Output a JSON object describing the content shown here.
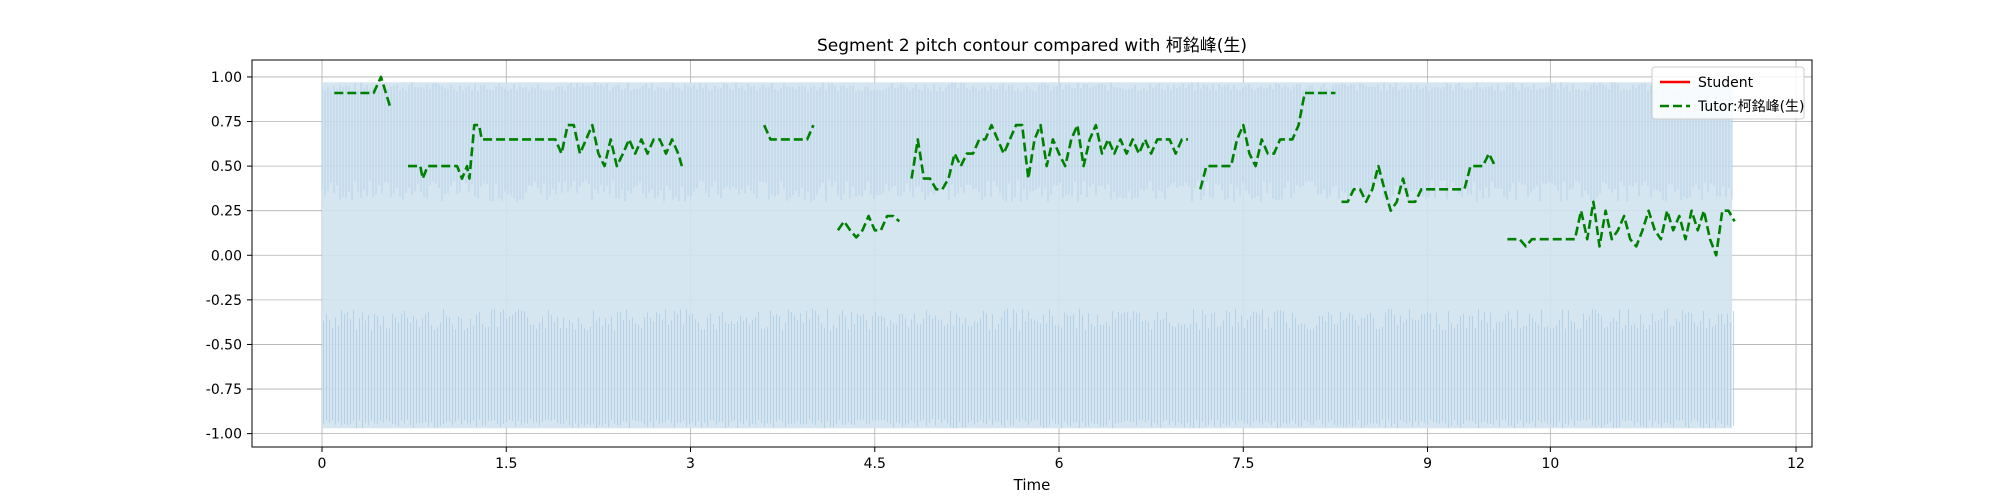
{
  "chart_data": {
    "type": "line",
    "title": "Segment 2 pitch contour compared with 柯銘峰(生)",
    "xlabel": "Time",
    "ylabel": "",
    "xlim": [
      -0.57,
      12.13
    ],
    "ylim": [
      -1.075,
      1.095
    ],
    "grid": true,
    "legend_position": "top-right",
    "x_ticks": [
      0,
      1.5,
      3,
      4.5,
      6,
      7.5,
      9,
      10,
      12
    ],
    "x_tick_labels": [
      "0",
      "1.5",
      "3",
      "4.5",
      "6",
      "7.5",
      "9",
      "10",
      "12"
    ],
    "y_ticks": [
      1.0,
      0.75,
      0.5,
      0.25,
      0.0,
      -0.25,
      -0.5,
      -0.75,
      -1.0
    ],
    "y_tick_labels": [
      "1.00",
      "0.75",
      "0.50",
      "0.25",
      "0.00",
      "-0.25",
      "-0.50",
      "-0.75",
      "-1.00"
    ],
    "colors": {
      "waveform": "#a9c9e3",
      "waveform_band": "#d2e3f0",
      "student": "#ff0000",
      "tutor": "#008000",
      "grid": "#b0b0b0"
    },
    "waveform": {
      "name": "",
      "x_range": [
        0,
        11.48
      ],
      "envelope_upper": 0.97,
      "envelope_lower": -0.97
    },
    "series": [
      {
        "name": "Student",
        "style": "solid",
        "color": "#ff0000",
        "x": [],
        "y": []
      },
      {
        "name": "Tutor:柯銘峰(生)",
        "style": "dashed",
        "color": "#008000",
        "segments": [
          {
            "x": [
              0.1,
              0.2,
              0.3,
              0.42,
              0.48,
              0.52,
              0.56
            ],
            "y": [
              0.91,
              0.91,
              0.91,
              0.91,
              1.0,
              0.91,
              0.82
            ]
          },
          {
            "x": [
              0.7,
              0.8,
              0.82,
              0.86,
              0.9,
              1.0,
              1.1,
              1.14,
              1.18,
              1.2,
              1.24,
              1.28,
              1.3,
              1.35,
              1.4,
              1.5,
              1.6,
              1.7,
              1.8,
              1.9,
              1.95,
              2.0,
              2.05,
              2.1,
              2.15,
              2.2,
              2.25,
              2.3,
              2.35,
              2.4,
              2.45,
              2.5,
              2.55,
              2.6,
              2.65,
              2.7,
              2.75,
              2.8,
              2.85,
              2.9,
              2.93
            ],
            "y": [
              0.5,
              0.5,
              0.43,
              0.5,
              0.5,
              0.5,
              0.5,
              0.43,
              0.5,
              0.43,
              0.73,
              0.73,
              0.65,
              0.65,
              0.65,
              0.65,
              0.65,
              0.65,
              0.65,
              0.65,
              0.57,
              0.73,
              0.73,
              0.57,
              0.65,
              0.73,
              0.57,
              0.5,
              0.65,
              0.5,
              0.57,
              0.65,
              0.57,
              0.65,
              0.57,
              0.65,
              0.65,
              0.57,
              0.65,
              0.57,
              0.5
            ]
          },
          {
            "x": [
              3.6,
              3.65,
              3.7,
              3.8,
              3.9,
              3.95,
              4.0
            ],
            "y": [
              0.73,
              0.65,
              0.65,
              0.65,
              0.65,
              0.65,
              0.73
            ]
          },
          {
            "x": [
              4.2,
              4.25,
              4.3,
              4.35,
              4.4,
              4.45,
              4.5,
              4.55,
              4.6,
              4.65,
              4.7
            ],
            "y": [
              0.14,
              0.19,
              0.14,
              0.1,
              0.14,
              0.22,
              0.14,
              0.14,
              0.22,
              0.22,
              0.19
            ]
          },
          {
            "x": [
              4.8,
              4.85,
              4.9,
              4.95,
              5.0,
              5.05,
              5.1,
              5.15,
              5.2,
              5.25,
              5.3,
              5.35,
              5.4,
              5.45,
              5.5,
              5.55,
              5.6,
              5.65,
              5.7,
              5.75,
              5.8,
              5.85,
              5.9,
              5.95,
              6.0,
              6.05,
              6.1,
              6.15,
              6.2,
              6.25,
              6.3,
              6.35,
              6.4,
              6.45,
              6.5,
              6.55,
              6.6,
              6.65,
              6.7,
              6.75,
              6.8,
              6.85,
              6.9,
              6.95,
              7.0,
              7.05
            ],
            "y": [
              0.43,
              0.65,
              0.43,
              0.43,
              0.37,
              0.37,
              0.43,
              0.57,
              0.5,
              0.57,
              0.57,
              0.65,
              0.65,
              0.73,
              0.65,
              0.57,
              0.65,
              0.73,
              0.73,
              0.43,
              0.65,
              0.73,
              0.5,
              0.65,
              0.57,
              0.5,
              0.65,
              0.73,
              0.5,
              0.65,
              0.73,
              0.57,
              0.65,
              0.57,
              0.65,
              0.57,
              0.65,
              0.57,
              0.65,
              0.57,
              0.65,
              0.65,
              0.65,
              0.57,
              0.65,
              0.65
            ]
          },
          {
            "x": [
              7.15,
              7.2,
              7.25,
              7.3,
              7.35,
              7.4,
              7.45,
              7.5,
              7.55,
              7.6,
              7.65,
              7.7,
              7.75,
              7.8,
              7.85,
              7.9,
              7.95,
              8.0,
              8.05,
              8.1,
              8.15,
              8.2,
              8.25
            ],
            "y": [
              0.37,
              0.5,
              0.5,
              0.5,
              0.5,
              0.5,
              0.65,
              0.73,
              0.57,
              0.5,
              0.65,
              0.57,
              0.57,
              0.65,
              0.65,
              0.65,
              0.73,
              0.91,
              0.91,
              0.91,
              0.91,
              0.91,
              0.91
            ]
          },
          {
            "x": [
              8.3,
              8.35,
              8.4,
              8.45,
              8.5,
              8.55,
              8.6,
              8.65,
              8.7,
              8.75,
              8.8,
              8.85,
              8.9,
              8.95,
              9.0,
              9.05,
              9.1,
              9.15,
              9.2,
              9.25,
              9.3,
              9.35,
              9.4,
              9.45,
              9.5,
              9.55
            ],
            "y": [
              0.3,
              0.3,
              0.37,
              0.37,
              0.3,
              0.37,
              0.5,
              0.37,
              0.25,
              0.3,
              0.43,
              0.3,
              0.3,
              0.37,
              0.37,
              0.37,
              0.37,
              0.37,
              0.37,
              0.37,
              0.37,
              0.5,
              0.5,
              0.5,
              0.57,
              0.5
            ]
          },
          {
            "x": [
              9.65,
              9.7,
              9.75,
              9.8,
              9.85,
              9.9,
              9.95,
              10.0,
              10.05,
              10.1,
              10.15,
              10.2,
              10.25,
              10.3,
              10.35,
              10.4,
              10.45,
              10.5,
              10.55,
              10.6,
              10.65,
              10.7,
              10.75,
              10.8,
              10.85,
              10.9,
              10.95,
              11.0,
              11.05,
              11.1,
              11.15,
              11.2,
              11.25,
              11.3,
              11.35,
              11.4,
              11.45,
              11.5
            ],
            "y": [
              0.09,
              0.09,
              0.09,
              0.05,
              0.09,
              0.09,
              0.09,
              0.09,
              0.09,
              0.09,
              0.09,
              0.09,
              0.25,
              0.09,
              0.3,
              0.05,
              0.25,
              0.09,
              0.14,
              0.22,
              0.09,
              0.05,
              0.14,
              0.25,
              0.14,
              0.09,
              0.25,
              0.14,
              0.22,
              0.09,
              0.25,
              0.14,
              0.25,
              0.09,
              0.0,
              0.25,
              0.25,
              0.19
            ]
          }
        ]
      }
    ]
  }
}
